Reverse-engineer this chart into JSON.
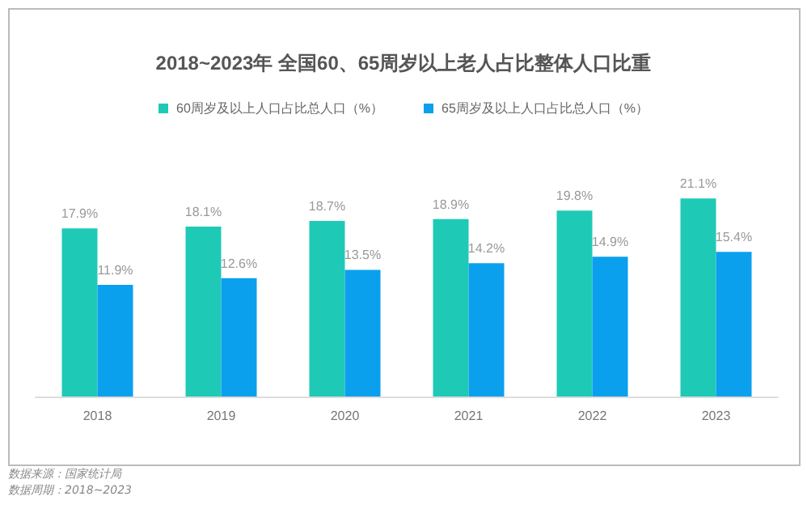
{
  "chart_data": {
    "type": "bar",
    "title": "2018~2023年 全国60、65周岁以上老人占比整体人口比重",
    "categories": [
      "2018",
      "2019",
      "2020",
      "2021",
      "2022",
      "2023"
    ],
    "series": [
      {
        "name": "60周岁及以上人口占比总人口（%）",
        "color": "#1ecab6",
        "values": [
          17.9,
          18.1,
          18.7,
          18.9,
          19.8,
          21.1
        ],
        "value_labels": [
          "17.9%",
          "18.1%",
          "18.7%",
          "18.9%",
          "19.8%",
          "21.1%"
        ]
      },
      {
        "name": "65周岁及以上人口占比总人口（%）",
        "color": "#0ba0ee",
        "values": [
          11.9,
          12.6,
          13.5,
          14.2,
          14.9,
          15.4
        ],
        "value_labels": [
          "11.9%",
          "12.6%",
          "13.5%",
          "14.2%",
          "14.9%",
          "15.4%"
        ]
      }
    ],
    "legend": "top",
    "grid": false,
    "annotations": [
      "数据来源：国家统计局",
      "数据周期：2018~2023"
    ]
  }
}
